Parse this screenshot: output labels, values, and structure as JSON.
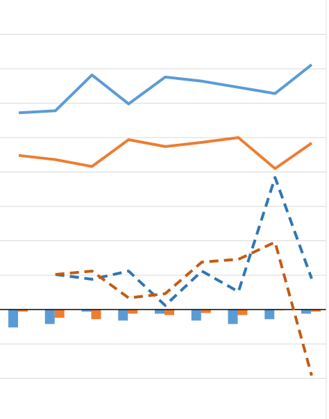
{
  "chart_data": {
    "type": "line",
    "x": [
      1,
      2,
      3,
      4,
      5,
      6,
      7,
      8,
      9
    ],
    "ylim": [
      -1.5,
      4.5
    ],
    "gridlines": [
      -1,
      -0.5,
      0,
      0.5,
      1,
      1.5,
      2,
      2.5,
      3,
      3.5,
      4
    ],
    "grid": true,
    "legend": "none",
    "series": [
      {
        "kind": "line",
        "style": "solid",
        "color": "#5b9bd5",
        "values": [
          2.86,
          2.89,
          3.41,
          2.99,
          3.38,
          3.32,
          3.23,
          3.14,
          3.56
        ]
      },
      {
        "kind": "line",
        "style": "solid",
        "color": "#ed7d31",
        "values": [
          2.24,
          2.18,
          2.08,
          2.47,
          2.37,
          2.43,
          2.5,
          2.05,
          2.42
        ]
      },
      {
        "kind": "line",
        "style": "dashed",
        "color": "#2e75b6",
        "values": [
          null,
          0.51,
          0.44,
          0.56,
          0.06,
          0.56,
          0.26,
          1.92,
          0.45
        ]
      },
      {
        "kind": "line",
        "style": "dashed",
        "color": "#c55a11",
        "values": [
          null,
          0.51,
          0.56,
          0.17,
          0.23,
          0.69,
          0.73,
          0.98,
          -0.96
        ]
      },
      {
        "kind": "bar",
        "color": "#5b9bd5",
        "values": [
          -0.26,
          -0.21,
          -0.03,
          -0.16,
          -0.06,
          -0.16,
          -0.21,
          -0.14,
          -0.06
        ]
      },
      {
        "kind": "bar",
        "color": "#ed7d31",
        "values": [
          -0.03,
          -0.12,
          -0.14,
          -0.06,
          -0.08,
          -0.05,
          -0.08,
          -0.01,
          -0.03
        ]
      }
    ]
  }
}
